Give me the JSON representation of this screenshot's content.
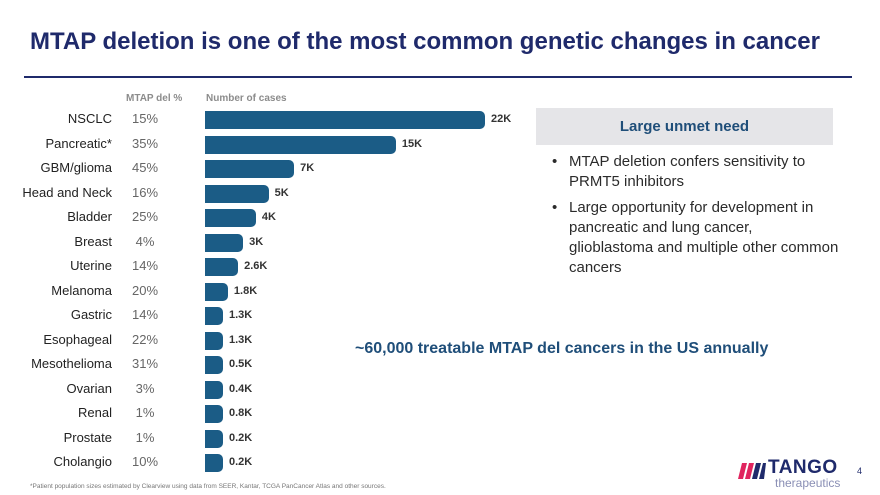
{
  "title": "MTAP deletion is one of the most common genetic changes in cancer",
  "chart_data": {
    "type": "bar",
    "orientation": "horizontal",
    "column_headers": {
      "percent": "MTAP del %",
      "cases": "Number of cases"
    },
    "categories": [
      "NSCLC",
      "Pancreatic*",
      "GBM/glioma",
      "Head and Neck",
      "Bladder",
      "Breast",
      "Uterine",
      "Melanoma",
      "Gastric",
      "Esophageal",
      "Mesothelioma",
      "Ovarian",
      "Renal",
      "Prostate",
      "Cholangio"
    ],
    "mtap_del_pct": [
      "15%",
      "35%",
      "45%",
      "16%",
      "25%",
      "4%",
      "14%",
      "20%",
      "14%",
      "22%",
      "31%",
      "3%",
      "1%",
      "1%",
      "10%"
    ],
    "values": [
      22000,
      15000,
      7000,
      5000,
      4000,
      3000,
      2600,
      1800,
      1300,
      1300,
      500,
      400,
      800,
      200,
      200
    ],
    "value_labels": [
      "22K",
      "15K",
      "7K",
      "5K",
      "4K",
      "3K",
      "2.6K",
      "1.8K",
      "1.3K",
      "1.3K",
      "0.5K",
      "0.4K",
      "0.8K",
      "0.2K",
      "0.2K"
    ],
    "bar_color": "#1b5c86",
    "xlim": [
      0,
      22000
    ]
  },
  "sidebar": {
    "header": "Large unmet need",
    "bullets": [
      "MTAP deletion confers sensitivity to PRMT5 inhibitors",
      "Large opportunity for development in pancreatic and lung cancer, glioblastoma and multiple other common cancers"
    ]
  },
  "callout": "~60,000 treatable MTAP del cancers in the US annually",
  "footnote": "*Patient population sizes estimated by Clearview using data from SEER, Kantar, TCGA PanCancer Atlas and other sources.",
  "logo": {
    "name": "TANGO",
    "subtitle": "therapeutics"
  },
  "page_number": "4",
  "colors": {
    "title": "#1f2a6b",
    "accent": "#1f4e79",
    "bar": "#1b5c86"
  }
}
